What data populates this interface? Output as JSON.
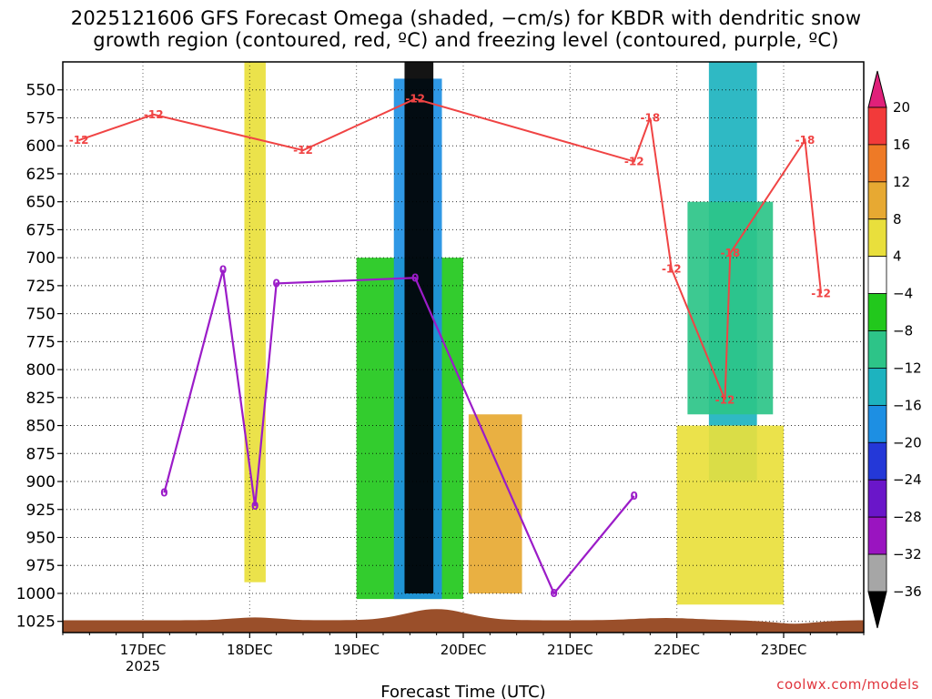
{
  "title_line1": "2025121606 GFS Forecast Omega (shaded, −cm/s) for KBDR with dendritic snow",
  "title_line2": "growth region (contoured, red, ºC) and freezing level (contoured, purple, ºC)",
  "credit": "coolwx.com/models",
  "chart_data": {
    "type": "heatmap",
    "title": "2025121606 GFS Forecast Omega (shaded, −cm/s) for KBDR with dendritic snow growth region (contoured, red, ºC) and freezing level (contoured, purple, ºC)",
    "xlabel": "Forecast Time (UTC)",
    "ylabel": "",
    "x_day_range": [
      16.25,
      23.75
    ],
    "x_ticks": [
      {
        "day": 17,
        "label": "17DEC",
        "sub": "2025"
      },
      {
        "day": 18,
        "label": "18DEC"
      },
      {
        "day": 19,
        "label": "19DEC"
      },
      {
        "day": 20,
        "label": "20DEC"
      },
      {
        "day": 21,
        "label": "21DEC"
      },
      {
        "day": 22,
        "label": "22DEC"
      },
      {
        "day": 23,
        "label": "23DEC"
      }
    ],
    "y_range_hpa": [
      1035,
      525
    ],
    "y_ticks": [
      550,
      575,
      600,
      625,
      650,
      675,
      700,
      725,
      750,
      775,
      800,
      825,
      850,
      875,
      900,
      925,
      950,
      975,
      1000,
      1025
    ],
    "colorbar": {
      "labels": [
        "20",
        "16",
        "12",
        "8",
        "4",
        "−4",
        "−8",
        "−12",
        "−16",
        "−20",
        "−24",
        "−28",
        "−32",
        "−36"
      ],
      "bins": [
        {
          "range": [
            16,
            20
          ],
          "color": "#f23a3a"
        },
        {
          "range": [
            12,
            16
          ],
          "color": "#ee7a26"
        },
        {
          "range": [
            8,
            12
          ],
          "color": "#e7a932"
        },
        {
          "range": [
            4,
            8
          ],
          "color": "#e9df3c"
        },
        {
          "range": [
            -4,
            4
          ],
          "color": "#ffffff"
        },
        {
          "range": [
            -8,
            -4
          ],
          "color": "#22c81c"
        },
        {
          "range": [
            -12,
            -8
          ],
          "color": "#2dc488"
        },
        {
          "range": [
            -16,
            -12
          ],
          "color": "#1db3bf"
        },
        {
          "range": [
            -20,
            -16
          ],
          "color": "#1d8fe3"
        },
        {
          "range": [
            -24,
            -20
          ],
          "color": "#2438d8"
        },
        {
          "range": [
            -28,
            -24
          ],
          "color": "#6a16c9"
        },
        {
          "range": [
            -32,
            -28
          ],
          "color": "#9a14c0"
        },
        {
          "range": [
            -36,
            -32
          ],
          "color": "#a6a6a6"
        }
      ],
      "top_arrow_color": "#e0207a",
      "bottom_arrow_color": "#000000"
    },
    "omega_features": [
      {
        "day_start": 19.45,
        "day_end": 19.72,
        "p_top": 525,
        "p_bottom": 1000,
        "value": -36,
        "note": "strong upward motion core"
      },
      {
        "day_start": 19.35,
        "day_end": 19.8,
        "p_top": 540,
        "p_bottom": 1005,
        "value": -20
      },
      {
        "day_start": 19.0,
        "day_end": 20.0,
        "p_top": 700,
        "p_bottom": 1005,
        "value": -8
      },
      {
        "day_start": 22.3,
        "day_end": 22.75,
        "p_top": 525,
        "p_bottom": 900,
        "value": -16
      },
      {
        "day_start": 22.1,
        "day_end": 22.9,
        "p_top": 650,
        "p_bottom": 840,
        "value": -10
      },
      {
        "day_start": 20.05,
        "day_end": 20.55,
        "p_top": 840,
        "p_bottom": 1000,
        "value": 8
      },
      {
        "day_start": 22.0,
        "day_end": 23.0,
        "p_top": 850,
        "p_bottom": 1010,
        "value": 6
      },
      {
        "day_start": 17.95,
        "day_end": 18.15,
        "p_top": 525,
        "p_bottom": 990,
        "value": 6
      }
    ],
    "contours": {
      "dgz_red": [
        {
          "label": "-12",
          "day": 16.4,
          "p": 595
        },
        {
          "label": "-12",
          "day": 17.1,
          "p": 572
        },
        {
          "label": "-12",
          "day": 18.5,
          "p": 604
        },
        {
          "label": "-12",
          "day": 19.55,
          "p": 558
        },
        {
          "label": "-18",
          "day": 21.75,
          "p": 575
        },
        {
          "label": "-12",
          "day": 21.6,
          "p": 614
        },
        {
          "label": "-18",
          "day": 23.2,
          "p": 595
        },
        {
          "label": "-18",
          "day": 22.5,
          "p": 696
        },
        {
          "label": "-12",
          "day": 21.95,
          "p": 710
        },
        {
          "label": "-12",
          "day": 23.35,
          "p": 732
        },
        {
          "label": "-12",
          "day": 22.45,
          "p": 827
        }
      ],
      "freezing_purple": [
        {
          "label": "0",
          "day": 17.75,
          "p": 711
        },
        {
          "label": "0",
          "day": 18.25,
          "p": 723
        },
        {
          "label": "0",
          "day": 19.55,
          "p": 718
        },
        {
          "label": "0",
          "day": 17.2,
          "p": 910
        },
        {
          "label": "0",
          "day": 18.05,
          "p": 922
        },
        {
          "label": "0",
          "day": 21.6,
          "p": 913
        },
        {
          "label": "0",
          "day": 20.85,
          "p": 1000
        }
      ]
    },
    "terrain_color": "#9a4f2a"
  }
}
